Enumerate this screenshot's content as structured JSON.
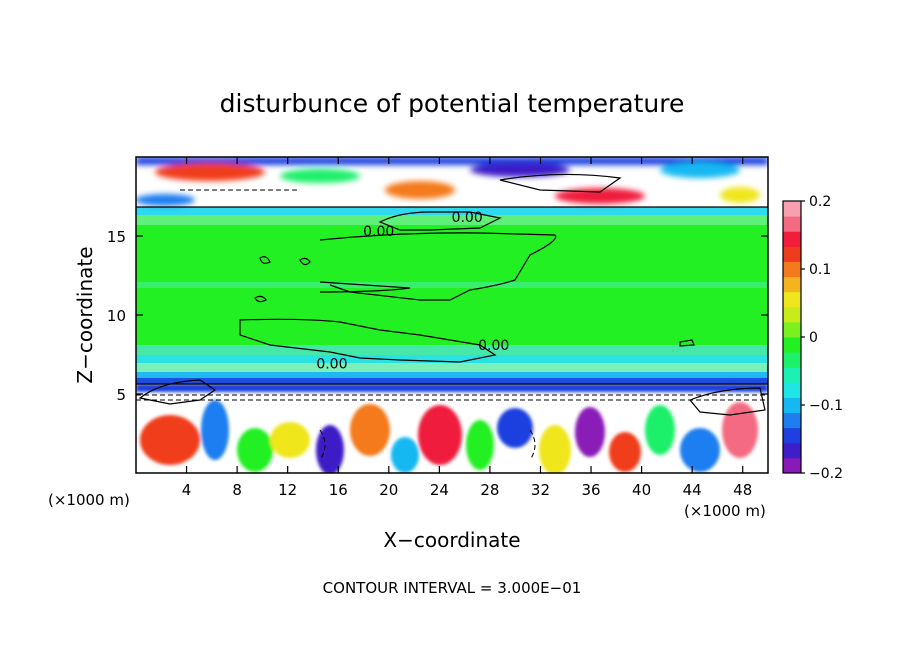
{
  "chart_data": {
    "type": "heatmap",
    "title": "disturbunce of potential temperature",
    "xlabel": "X−coordinate",
    "ylabel": "Z−coordinate",
    "x_unit_left": "(×1000 m)",
    "x_unit_right": "(×1000 m)",
    "xlim": [
      0,
      50
    ],
    "ylim": [
      0,
      20
    ],
    "x_ticks": [
      4,
      8,
      12,
      16,
      20,
      24,
      28,
      32,
      36,
      40,
      44,
      48
    ],
    "y_ticks": [
      5,
      10,
      15
    ],
    "colorbar": {
      "range": [
        -0.2,
        0.2
      ],
      "ticks": [
        {
          "value": 0.2,
          "label": "0.2"
        },
        {
          "value": 0.1,
          "label": "0.1"
        },
        {
          "value": 0,
          "label": "0"
        },
        {
          "value": -0.1,
          "label": "−0.1"
        },
        {
          "value": -0.2,
          "label": "−0.2"
        }
      ],
      "colors": [
        "#8a1ab8",
        "#3d1ec8",
        "#1f3fe0",
        "#1e7ef0",
        "#16b8f2",
        "#1ee6e6",
        "#1cf0b4",
        "#1ef06a",
        "#22f022",
        "#7af01e",
        "#c8ec1a",
        "#f0e61e",
        "#f4b41e",
        "#f47a1e",
        "#f03c1e",
        "#f01e3c",
        "#f46a82",
        "#f8a0b0"
      ]
    },
    "contour_labels": [
      {
        "x": 19.2,
        "z": 15.0,
        "text": "0.00"
      },
      {
        "x": 26.2,
        "z": 15.9,
        "text": "0.00"
      },
      {
        "x": 28.3,
        "z": 7.8,
        "text": "0.00"
      },
      {
        "x": 15.5,
        "z": 6.6,
        "text": "0.00"
      }
    ],
    "footer": "CONTOUR INTERVAL = 3.000E−01"
  }
}
